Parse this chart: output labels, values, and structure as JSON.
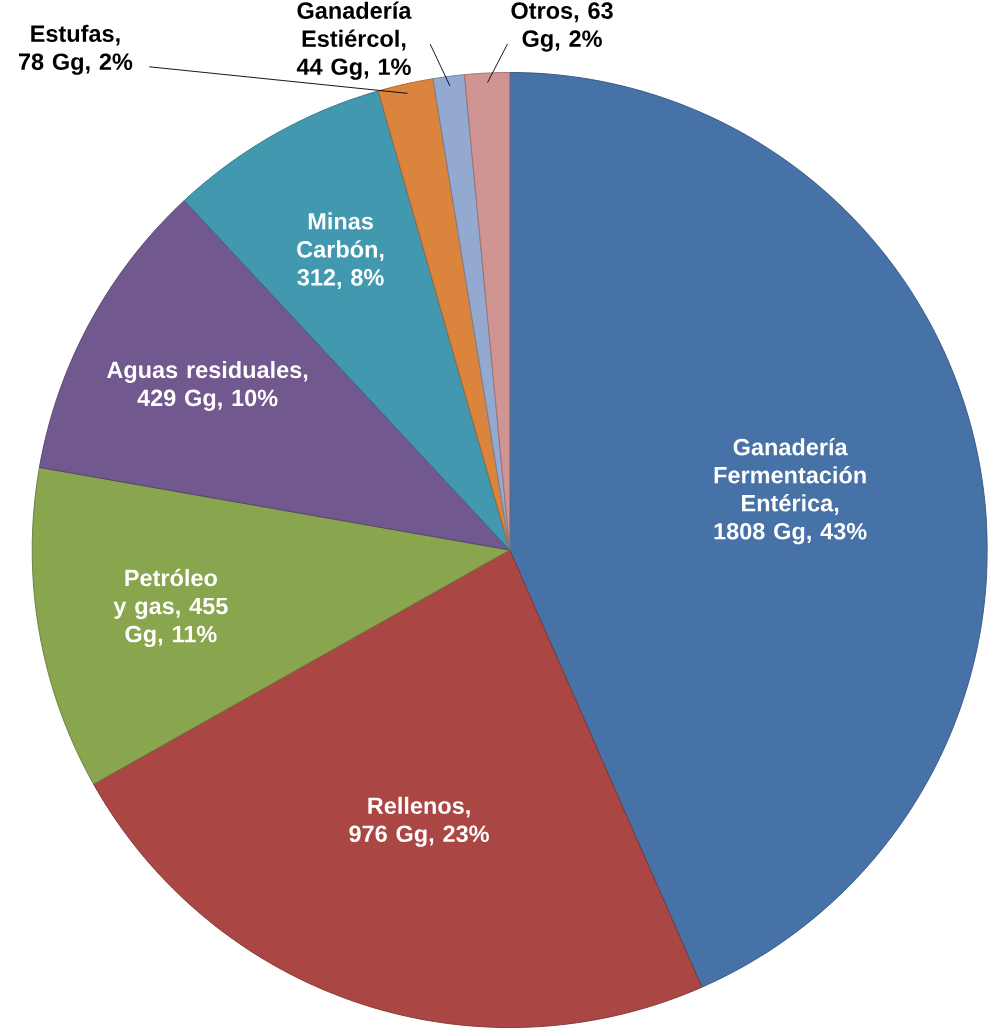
{
  "chart_data": {
    "type": "pie",
    "categories": [
      "Ganadería Fermentación Entérica",
      "Rellenos",
      "Petróleo y gas",
      "Aguas residuales",
      "Minas Carbón",
      "Estufas",
      "Ganadería Estiércol",
      "Otros"
    ],
    "values": [
      1808,
      976,
      455,
      429,
      312,
      78,
      44,
      63
    ],
    "colors": [
      "#4672a8",
      "#aa4644",
      "#89a54e",
      "#71588f",
      "#4198af",
      "#db843d",
      "#93a9cf",
      "#d09493"
    ],
    "value_labels": [
      ", 1808 Gg, 43%",
      ", 976 Gg, 23%",
      ", 455 Gg, 11%",
      ", 429 Gg, 10%",
      ", 312, 8%",
      ", 78 Gg, 2%",
      ", 44 Gg, 1%",
      ", 63 Gg, 2%"
    ]
  }
}
